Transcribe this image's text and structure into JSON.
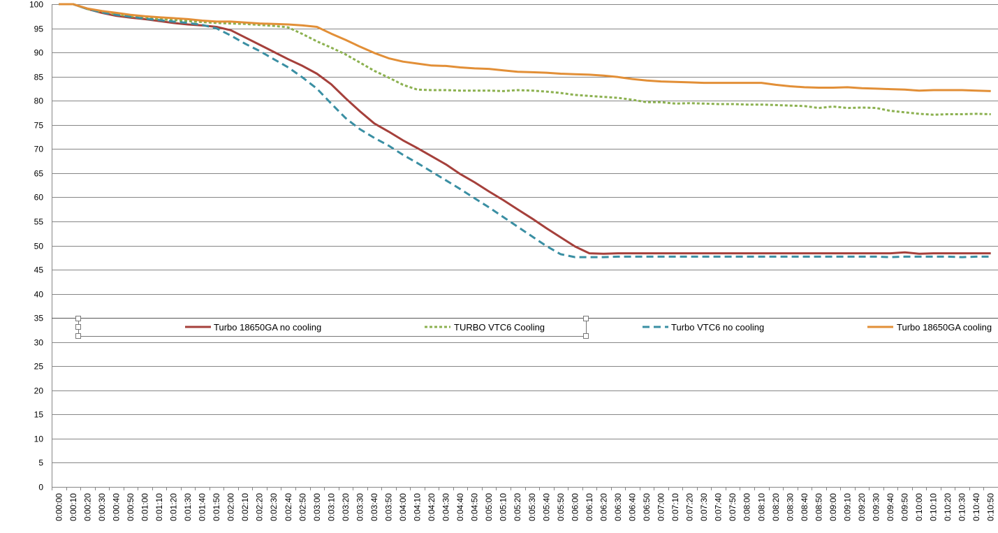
{
  "chart_data": {
    "type": "line",
    "title": "",
    "xlabel": "",
    "ylabel": "",
    "ylim": [
      0,
      100
    ],
    "yticks": [
      0,
      5,
      10,
      15,
      20,
      25,
      30,
      35,
      40,
      45,
      50,
      55,
      60,
      65,
      70,
      75,
      80,
      85,
      90,
      95,
      100
    ],
    "grid": "horizontal",
    "legend_position": "inside-middle",
    "categories": [
      "0:00:00",
      "0:00:10",
      "0:00:20",
      "0:00:30",
      "0:00:40",
      "0:00:50",
      "0:01:00",
      "0:01:10",
      "0:01:20",
      "0:01:30",
      "0:01:40",
      "0:01:50",
      "0:02:00",
      "0:02:10",
      "0:02:20",
      "0:02:30",
      "0:02:40",
      "0:02:50",
      "0:03:00",
      "0:03:10",
      "0:03:20",
      "0:03:30",
      "0:03:40",
      "0:03:50",
      "0:04:00",
      "0:04:10",
      "0:04:20",
      "0:04:30",
      "0:04:40",
      "0:04:50",
      "0:05:00",
      "0:05:10",
      "0:05:20",
      "0:05:30",
      "0:05:40",
      "0:05:50",
      "0:06:00",
      "0:06:10",
      "0:06:20",
      "0:06:30",
      "0:06:40",
      "0:06:50",
      "0:07:00",
      "0:07:10",
      "0:07:20",
      "0:07:30",
      "0:07:40",
      "0:07:50",
      "0:08:00",
      "0:08:10",
      "0:08:20",
      "0:08:30",
      "0:08:40",
      "0:08:50",
      "0:09:00",
      "0:09:10",
      "0:09:20",
      "0:09:30",
      "0:09:40",
      "0:09:50",
      "0:10:00",
      "0:10:10",
      "0:10:20",
      "0:10:30",
      "0:10:40",
      "0:10:50"
    ],
    "series": [
      {
        "name": "Turbo 18650GA no cooling",
        "color": "#A5403B",
        "dash": "solid",
        "values": [
          100,
          100,
          99,
          98.2,
          97.6,
          97.2,
          96.9,
          96.5,
          96.1,
          95.8,
          95.6,
          95.3,
          94.6,
          93.1,
          91.6,
          90.1,
          88.6,
          87.2,
          85.6,
          83.4,
          80.5,
          77.8,
          75.3,
          73.6,
          71.8,
          70.2,
          68.5,
          66.8,
          64.8,
          63.1,
          61.2,
          59.4,
          57.5,
          55.6,
          53.6,
          51.7,
          49.8,
          48.4,
          48.3,
          48.4,
          48.4,
          48.4,
          48.4,
          48.4,
          48.4,
          48.4,
          48.4,
          48.4,
          48.4,
          48.4,
          48.4,
          48.4,
          48.4,
          48.4,
          48.4,
          48.4,
          48.4,
          48.4,
          48.4,
          48.6,
          48.3,
          48.4,
          48.4,
          48.4,
          48.4,
          48.4
        ]
      },
      {
        "name": "TURBO VTC6 Cooling",
        "color": "#8CB150",
        "dash": "dotted",
        "values": [
          100,
          100,
          99,
          98.4,
          97.9,
          97.5,
          97.2,
          96.9,
          96.7,
          96.5,
          96.3,
          96.1,
          96,
          95.9,
          95.7,
          95.5,
          95.2,
          93.8,
          92.3,
          91,
          89.6,
          87.9,
          86.2,
          84.8,
          83.3,
          82.3,
          82.2,
          82.2,
          82.1,
          82.1,
          82.1,
          82,
          82.2,
          82.1,
          81.9,
          81.6,
          81.2,
          81,
          80.8,
          80.6,
          80.2,
          79.7,
          79.7,
          79.4,
          79.5,
          79.4,
          79.3,
          79.3,
          79.2,
          79.2,
          79.1,
          79,
          78.9,
          78.5,
          78.8,
          78.5,
          78.6,
          78.5,
          77.9,
          77.6,
          77.3,
          77.1,
          77.2,
          77.2,
          77.3,
          77.2
        ]
      },
      {
        "name": "Turbo VTC6 no cooling",
        "color": "#3A8FA3",
        "dash": "dashed",
        "values": [
          100,
          100,
          99,
          98.3,
          97.8,
          97.4,
          97,
          96.7,
          96.4,
          96.1,
          95.7,
          95,
          93.5,
          91.8,
          90.3,
          88.6,
          86.9,
          84.8,
          82.5,
          79.4,
          76.4,
          74.1,
          72.3,
          70.7,
          68.8,
          67.1,
          65.3,
          63.5,
          61.7,
          59.8,
          57.9,
          55.9,
          53.9,
          51.9,
          49.9,
          48.2,
          47.6,
          47.6,
          47.6,
          47.7,
          47.7,
          47.7,
          47.7,
          47.7,
          47.7,
          47.7,
          47.7,
          47.7,
          47.7,
          47.7,
          47.7,
          47.7,
          47.7,
          47.7,
          47.7,
          47.7,
          47.7,
          47.7,
          47.6,
          47.7,
          47.7,
          47.7,
          47.7,
          47.6,
          47.7,
          47.7
        ]
      },
      {
        "name": "Turbo 18650GA cooling",
        "color": "#E28F37",
        "dash": "solid",
        "values": [
          100,
          100,
          99.1,
          98.6,
          98.2,
          97.8,
          97.5,
          97.3,
          97.1,
          96.9,
          96.6,
          96.4,
          96.4,
          96.2,
          96,
          95.9,
          95.8,
          95.6,
          95.3,
          93.9,
          92.6,
          91.2,
          89.9,
          88.8,
          88.1,
          87.7,
          87.3,
          87.2,
          86.9,
          86.7,
          86.6,
          86.3,
          86,
          85.9,
          85.8,
          85.6,
          85.5,
          85.4,
          85.2,
          84.9,
          84.5,
          84.2,
          84,
          83.9,
          83.8,
          83.7,
          83.7,
          83.7,
          83.7,
          83.7,
          83.3,
          83,
          82.8,
          82.7,
          82.7,
          82.8,
          82.6,
          82.5,
          82.4,
          82.3,
          82.1,
          82.2,
          82.2,
          82.2,
          82.1,
          82
        ]
      }
    ]
  }
}
